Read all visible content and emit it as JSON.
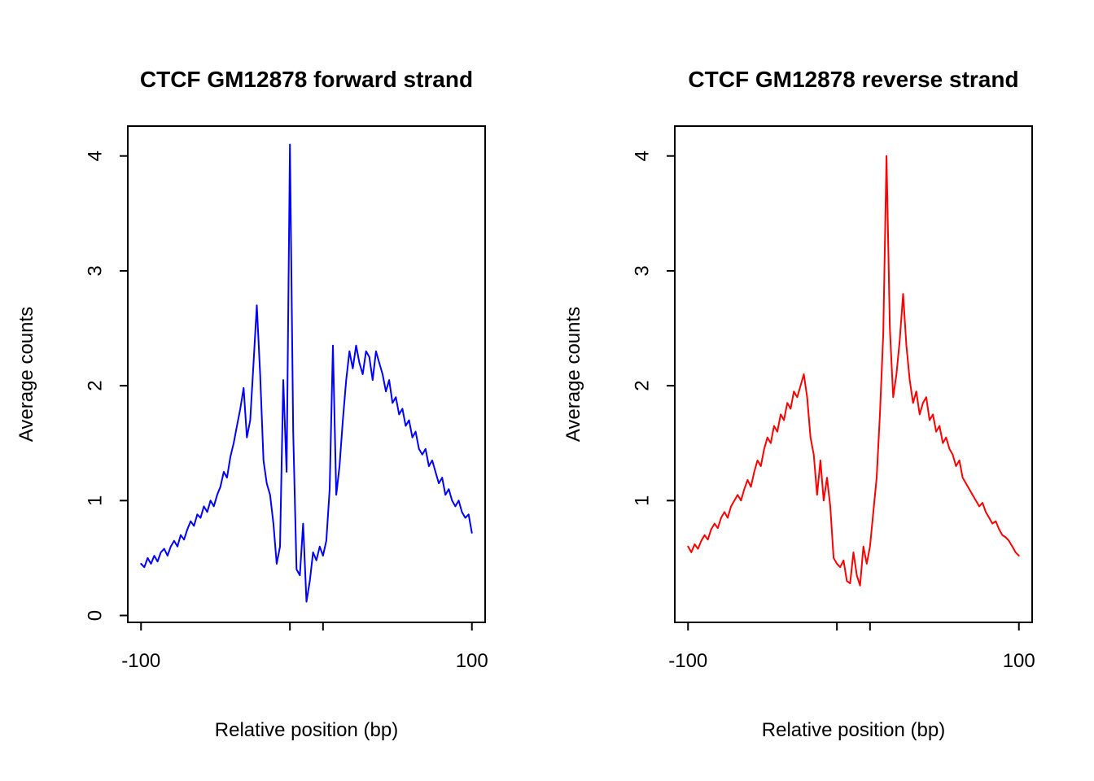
{
  "page": {
    "background": "#ffffff"
  },
  "chart_data": [
    {
      "type": "line",
      "title": "CTCF GM12878 forward strand",
      "xlabel": "Relative position (bp)",
      "ylabel": "Average counts",
      "color": "#0000ff",
      "xlim": [
        -108,
        108
      ],
      "ylim": [
        -0.06,
        4.26
      ],
      "x_ticks_labeled": [
        -100,
        100
      ],
      "x_ticks_unlabeled": [
        -10,
        10
      ],
      "y_ticks": [
        0,
        1,
        2,
        3,
        4
      ],
      "x_start": -100,
      "x_step": 2,
      "values": [
        0.45,
        0.42,
        0.5,
        0.45,
        0.52,
        0.47,
        0.55,
        0.58,
        0.52,
        0.6,
        0.65,
        0.6,
        0.7,
        0.66,
        0.75,
        0.82,
        0.78,
        0.88,
        0.85,
        0.95,
        0.9,
        1.0,
        0.95,
        1.05,
        1.12,
        1.25,
        1.2,
        1.38,
        1.5,
        1.65,
        1.8,
        1.98,
        1.55,
        1.7,
        2.2,
        2.7,
        2.1,
        1.35,
        1.15,
        1.05,
        0.8,
        0.45,
        0.6,
        2.05,
        1.25,
        4.1,
        1.6,
        0.4,
        0.35,
        0.8,
        0.12,
        0.3,
        0.55,
        0.48,
        0.6,
        0.52,
        0.65,
        1.1,
        2.35,
        1.05,
        1.3,
        1.7,
        2.05,
        2.3,
        2.15,
        2.35,
        2.2,
        2.1,
        2.3,
        2.25,
        2.05,
        2.3,
        2.2,
        2.1,
        1.95,
        2.05,
        1.85,
        1.9,
        1.75,
        1.8,
        1.65,
        1.7,
        1.55,
        1.6,
        1.45,
        1.4,
        1.45,
        1.3,
        1.35,
        1.25,
        1.15,
        1.2,
        1.05,
        1.1,
        1.0,
        0.95,
        1.0,
        0.9,
        0.85,
        0.88,
        0.72
      ]
    },
    {
      "type": "line",
      "title": "CTCF GM12878 reverse strand",
      "xlabel": "Relative position (bp)",
      "ylabel": "Average counts",
      "color": "#ff0000",
      "xlim": [
        -108,
        108
      ],
      "ylim": [
        -0.06,
        4.26
      ],
      "x_ticks_labeled": [
        -100,
        100
      ],
      "x_ticks_unlabeled": [
        -10,
        10
      ],
      "y_ticks": [
        1,
        2,
        3,
        4
      ],
      "x_start": -100,
      "x_step": 2,
      "values": [
        0.6,
        0.55,
        0.62,
        0.58,
        0.65,
        0.7,
        0.66,
        0.75,
        0.8,
        0.76,
        0.85,
        0.9,
        0.85,
        0.95,
        1.0,
        1.05,
        1.0,
        1.1,
        1.18,
        1.12,
        1.25,
        1.35,
        1.3,
        1.45,
        1.55,
        1.5,
        1.65,
        1.6,
        1.75,
        1.7,
        1.85,
        1.8,
        1.95,
        1.9,
        2.0,
        2.1,
        1.9,
        1.55,
        1.4,
        1.05,
        1.35,
        1.0,
        1.2,
        0.95,
        0.5,
        0.45,
        0.42,
        0.48,
        0.3,
        0.28,
        0.55,
        0.35,
        0.26,
        0.6,
        0.45,
        0.6,
        0.9,
        1.2,
        1.75,
        2.45,
        4.0,
        2.5,
        1.9,
        2.1,
        2.4,
        2.8,
        2.35,
        2.05,
        1.85,
        1.95,
        1.75,
        1.85,
        1.9,
        1.7,
        1.75,
        1.6,
        1.65,
        1.5,
        1.55,
        1.45,
        1.4,
        1.3,
        1.35,
        1.2,
        1.15,
        1.1,
        1.05,
        1.0,
        0.95,
        0.98,
        0.9,
        0.85,
        0.8,
        0.82,
        0.75,
        0.7,
        0.68,
        0.65,
        0.6,
        0.55,
        0.52
      ]
    }
  ]
}
